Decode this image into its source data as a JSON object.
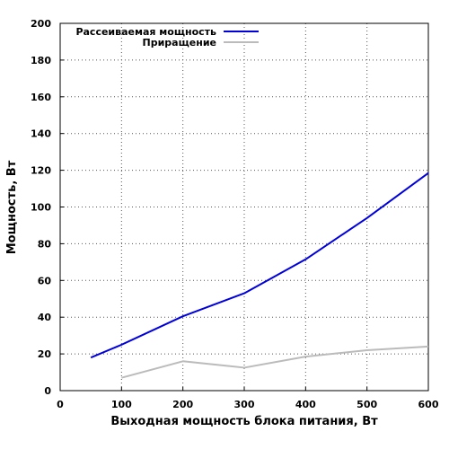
{
  "chart_data": {
    "type": "line",
    "xlabel": "Выходная мощность блока питания, Вт",
    "ylabel": "Мощность, Вт",
    "xlim": [
      0,
      600
    ],
    "ylim": [
      0,
      200
    ],
    "x_ticks": [
      "0",
      "100",
      "200",
      "300",
      "400",
      "500",
      "600"
    ],
    "y_ticks": [
      "0",
      "20",
      "40",
      "60",
      "80",
      "100",
      "120",
      "140",
      "160",
      "180",
      "200"
    ],
    "grid": true,
    "legend_position": "top-left",
    "series": [
      {
        "name": "Рассеиваемая мощность",
        "color": "#0000dd",
        "x": [
          50,
          100,
          200,
          300,
          400,
          500,
          600
        ],
        "values": [
          18,
          25,
          40.5,
          53,
          71.5,
          94,
          118.5
        ]
      },
      {
        "name": "Приращение",
        "color": "#bbbbbb",
        "x": [
          100,
          200,
          300,
          400,
          500,
          600
        ],
        "values": [
          7,
          16,
          12.5,
          18.5,
          22,
          24
        ]
      }
    ]
  }
}
